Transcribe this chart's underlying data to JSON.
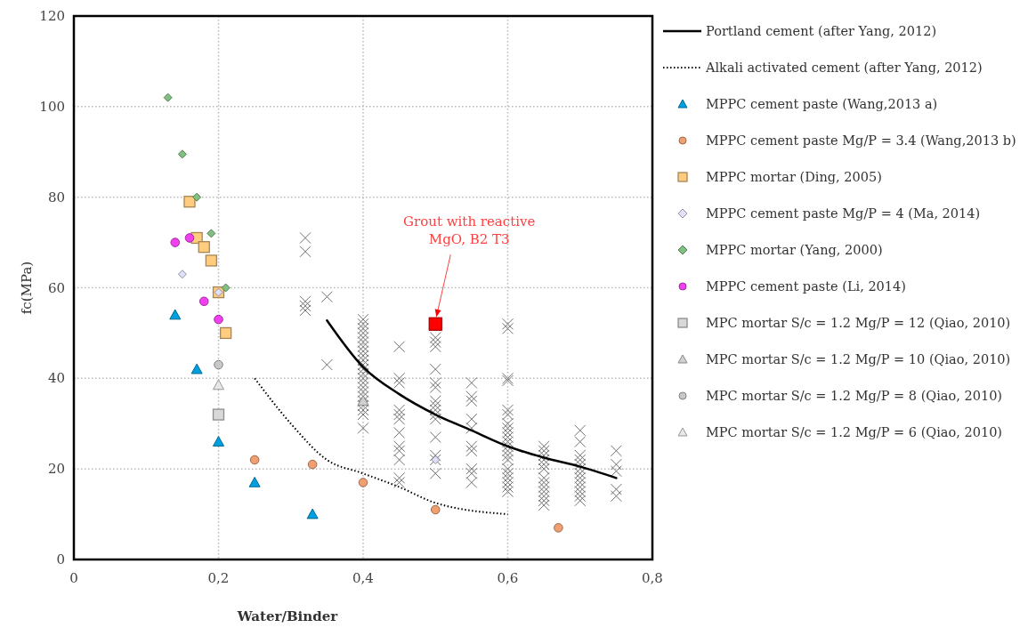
{
  "chart_data": {
    "type": "scatter",
    "xlabel": "Water/Binder",
    "ylabel": "fc(MPa)",
    "xlim": [
      0,
      0.8
    ],
    "ylim": [
      0,
      120
    ],
    "xticks": [
      0,
      {
        "value": 0.2,
        "label": "0,2"
      },
      {
        "value": 0.4,
        "label": "0,4"
      },
      {
        "value": 0.6,
        "label": "0,6"
      },
      {
        "value": 0.8,
        "label": "0,8"
      }
    ],
    "yticks": [
      0,
      20,
      40,
      60,
      80,
      100,
      120
    ],
    "grid": true,
    "legend": "right",
    "annotations": [
      {
        "text": "Grout with reactive MgO, B2 T3",
        "x": 0.5,
        "y": 52
      }
    ],
    "series": [
      {
        "name": "Portland cement (after Yang, 2012)",
        "type": "line",
        "line_style": "solid",
        "marker": "none",
        "color": "#000000",
        "x": [
          0.35,
          0.4,
          0.45,
          0.5,
          0.55,
          0.6,
          0.65,
          0.7,
          0.75
        ],
        "values": [
          52.8,
          42.5,
          36.5,
          32,
          28.5,
          25,
          22.5,
          20.5,
          18
        ]
      },
      {
        "name": "Alkali activated cement (after Yang, 2012)",
        "type": "line",
        "line_style": "dotted",
        "marker": "none",
        "color": "#000000",
        "x": [
          0.25,
          0.3,
          0.35,
          0.4,
          0.45,
          0.5,
          0.6
        ],
        "values": [
          40,
          30,
          22,
          19,
          16,
          12.5,
          10
        ]
      },
      {
        "name": "MPPC cement paste (Wang,2013 a)",
        "marker": "triangle",
        "color": "#00a0e0",
        "x": [
          0.14,
          0.17,
          0.2,
          0.25,
          0.33
        ],
        "values": [
          54,
          42,
          26,
          17,
          10
        ]
      },
      {
        "name": "MPPC cement paste Mg/P = 3.4 (Wang,2013 b)",
        "marker": "circle",
        "color": "#f0a070",
        "x": [
          0.25,
          0.33,
          0.4,
          0.5,
          0.67
        ],
        "values": [
          22,
          21,
          17,
          11,
          7
        ]
      },
      {
        "name": "MPPC mortar (Ding, 2005)",
        "marker": "square",
        "color": "#ffcc80",
        "x": [
          0.16,
          0.17,
          0.18,
          0.19,
          0.2,
          0.21
        ],
        "values": [
          79,
          71,
          69,
          66,
          59,
          50
        ]
      },
      {
        "name": "MPPC cement paste Mg/P = 4 (Ma, 2014)",
        "marker": "diamond",
        "color": "#e0e0f8",
        "x": [
          0.15,
          0.2,
          0.5
        ],
        "values": [
          63,
          59,
          22
        ]
      },
      {
        "name": "MPPC mortar (Yang, 2000)",
        "marker": "diamond",
        "color": "#80c080",
        "x": [
          0.13,
          0.15,
          0.17,
          0.19,
          0.21
        ],
        "values": [
          102,
          89.5,
          80,
          72,
          60
        ]
      },
      {
        "name": "MPPC cement paste (Li, 2014)",
        "marker": "circle",
        "color": "#f040f0",
        "x": [
          0.14,
          0.16,
          0.18,
          0.2
        ],
        "values": [
          70,
          71,
          57,
          53
        ]
      },
      {
        "name": "MPC mortar S/c = 1.2 Mg/P = 12 (Qiao, 2010)",
        "marker": "square",
        "color": "#d8d8d8",
        "x": [
          0.2
        ],
        "values": [
          32
        ]
      },
      {
        "name": "MPC mortar S/c = 1.2 Mg/P = 10 (Qiao, 2010)",
        "marker": "triangle",
        "color": "#d0d0d0",
        "x": [
          0.4
        ],
        "values": [
          35
        ]
      },
      {
        "name": "MPC mortar S/c = 1.2 Mg/P = 8 (Qiao, 2010)",
        "marker": "circle",
        "color": "#c8c8c8",
        "x": [
          0.2
        ],
        "values": [
          43
        ]
      },
      {
        "name": "MPC mortar S/c = 1.2 Mg/P = 6 (Qiao, 2010)",
        "marker": "triangle",
        "color": "#e8e8e8",
        "x": [
          0.2
        ],
        "values": [
          38.5
        ]
      },
      {
        "marker": "cross",
        "color": "#707070",
        "x": [
          0.32,
          0.32,
          0.32,
          0.32,
          0.32,
          0.35,
          0.35,
          0.4,
          0.4,
          0.4,
          0.4,
          0.4,
          0.4,
          0.4,
          0.4,
          0.4,
          0.4,
          0.4,
          0.4,
          0.4,
          0.4,
          0.4,
          0.4,
          0.4,
          0.4,
          0.4,
          0.4,
          0.4,
          0.4,
          0.4,
          0.45,
          0.45,
          0.45,
          0.45,
          0.45,
          0.45,
          0.45,
          0.45,
          0.45,
          0.45,
          0.45,
          0.45,
          0.5,
          0.5,
          0.5,
          0.5,
          0.5,
          0.5,
          0.5,
          0.5,
          0.5,
          0.5,
          0.5,
          0.5,
          0.5,
          0.5,
          0.5,
          0.55,
          0.55,
          0.55,
          0.55,
          0.55,
          0.55,
          0.55,
          0.55,
          0.55,
          0.55,
          0.6,
          0.6,
          0.6,
          0.6,
          0.6,
          0.6,
          0.6,
          0.6,
          0.6,
          0.6,
          0.6,
          0.6,
          0.6,
          0.6,
          0.6,
          0.6,
          0.6,
          0.6,
          0.6,
          0.6,
          0.6,
          0.65,
          0.65,
          0.65,
          0.65,
          0.65,
          0.65,
          0.65,
          0.65,
          0.65,
          0.65,
          0.65,
          0.65,
          0.65,
          0.7,
          0.7,
          0.7,
          0.7,
          0.7,
          0.7,
          0.7,
          0.7,
          0.7,
          0.7,
          0.7,
          0.7,
          0.7,
          0.75,
          0.75,
          0.75,
          0.75,
          0.75
        ],
        "values": [
          71,
          68,
          57,
          56,
          55,
          58,
          43,
          53,
          52,
          51,
          50,
          49,
          48,
          47,
          46,
          45,
          44,
          43,
          42,
          41,
          40,
          39,
          38,
          37,
          36,
          35,
          34,
          33,
          32,
          29,
          47,
          40,
          39,
          33,
          32,
          31,
          28,
          25,
          24,
          22,
          18,
          17,
          49,
          48,
          47,
          42,
          39,
          38,
          35,
          34,
          33,
          32,
          31,
          27,
          23,
          22,
          19,
          39,
          36,
          35,
          31,
          29,
          25,
          24,
          20,
          19,
          17,
          52,
          51,
          40,
          39.5,
          33,
          32,
          30,
          29,
          28,
          27,
          26,
          25,
          24,
          23,
          22,
          20,
          19,
          18,
          17,
          16,
          15,
          25,
          24,
          23,
          22,
          21,
          20,
          18,
          17,
          16,
          15,
          14,
          13,
          12,
          28.5,
          26,
          23,
          22,
          21,
          20,
          19,
          18,
          17,
          16,
          15,
          14,
          13,
          24,
          21,
          19.5,
          15.5,
          14
        ]
      },
      {
        "marker": "square",
        "color": "#ff0000",
        "x": [
          0.5
        ],
        "values": [
          52
        ]
      }
    ]
  }
}
